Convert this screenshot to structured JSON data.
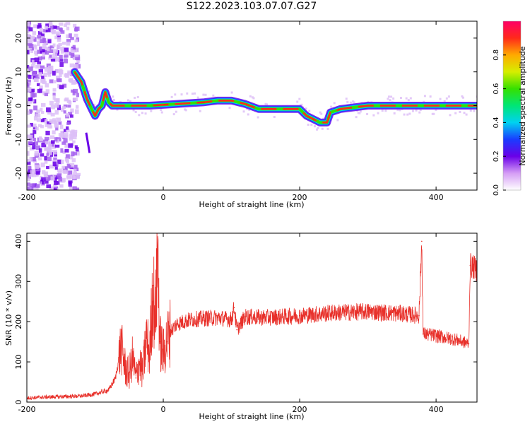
{
  "title": "S122.2023.103.07.07.G27",
  "chart_data": [
    {
      "type": "heatmap",
      "xlabel": "Height of straight line (km)",
      "ylabel": "Frequency (Hz)",
      "xlim": [
        -200,
        460
      ],
      "ylim": [
        -25,
        25
      ],
      "xticks": [
        "-200",
        "0",
        "200",
        "400"
      ],
      "yticks": [
        "-20",
        "-10",
        "0",
        "10",
        "20"
      ],
      "colorbar": {
        "label": "Normalized spectral amplitude",
        "range": [
          0,
          1
        ],
        "ticks": [
          "0.0",
          "0.2",
          "0.4",
          "0.6",
          "0.8"
        ]
      },
      "ridge": {
        "x": [
          -130,
          -120,
          -112,
          -105,
          -100,
          -95,
          -90,
          -85,
          -80,
          -75,
          -60,
          -20,
          20,
          60,
          80,
          100,
          120,
          140,
          160,
          200,
          210,
          220,
          230,
          240,
          245,
          260,
          300,
          400,
          460
        ],
        "frequency": [
          10,
          7,
          2,
          -1,
          -3,
          -1,
          0,
          4,
          1,
          0,
          0,
          0,
          0.5,
          1,
          1.5,
          1.5,
          0.5,
          -1,
          -1,
          -1,
          -3,
          -4,
          -5,
          -5,
          -2,
          -1,
          0,
          0,
          0
        ]
      }
    },
    {
      "type": "line",
      "xlabel": "Height of straight line (km)",
      "ylabel": "SNR (10 * v/v)",
      "xlim": [
        -200,
        460
      ],
      "ylim": [
        0,
        420
      ],
      "xticks": [
        "-200",
        "0",
        "200",
        "400"
      ],
      "yticks": [
        "0",
        "100",
        "200",
        "300",
        "400"
      ],
      "color": "#e8302a",
      "x": [
        -200,
        -180,
        -160,
        -140,
        -120,
        -100,
        -80,
        -70,
        -62,
        -55,
        -50,
        -45,
        -40,
        -35,
        -30,
        -25,
        -20,
        -15,
        -12,
        -8,
        -5,
        0,
        5,
        10,
        20,
        40,
        60,
        80,
        100,
        104,
        108,
        120,
        150,
        200,
        250,
        300,
        350,
        375,
        379,
        381,
        400,
        430,
        448,
        450,
        460
      ],
      "y": [
        10,
        12,
        13,
        14,
        15,
        20,
        30,
        60,
        140,
        80,
        70,
        110,
        60,
        100,
        70,
        160,
        120,
        290,
        200,
        380,
        150,
        120,
        150,
        175,
        195,
        205,
        208,
        210,
        205,
        235,
        180,
        212,
        210,
        215,
        222,
        225,
        220,
        215,
        400,
        170,
        165,
        155,
        145,
        340,
        330
      ]
    }
  ]
}
